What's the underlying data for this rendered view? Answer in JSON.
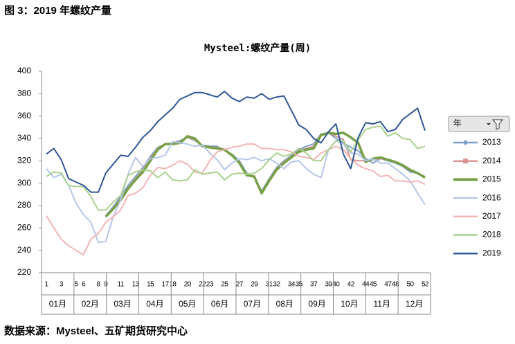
{
  "header": "图 3：2019 年螺纹产量",
  "source": "数据来源：Mysteel、五矿期货研究中心",
  "chart_data": {
    "type": "line",
    "title": "Mysteel:螺纹产量(周)",
    "categories": [
      "1",
      null,
      "3",
      null,
      "5",
      "6",
      null,
      "8",
      "9",
      null,
      "11",
      null,
      "13",
      null,
      "15",
      null,
      "17",
      "18",
      null,
      "20",
      null,
      "22",
      "23",
      null,
      "25",
      null,
      "27",
      null,
      "29",
      null,
      "31",
      "32",
      null,
      "34",
      "35",
      null,
      "37",
      null,
      "39",
      "40",
      null,
      "42",
      null,
      "44",
      "45",
      null,
      "47",
      "48",
      null,
      "50",
      null,
      "52"
    ],
    "months": [
      "01月",
      "02月",
      "03月",
      "04月",
      "05月",
      "06月",
      "07月",
      "08月",
      "09月",
      "10月",
      "11月",
      "12月"
    ],
    "legend_title": "年",
    "legend": "right",
    "ylim": [
      220,
      400
    ],
    "yticks": [
      220,
      240,
      260,
      280,
      300,
      320,
      340,
      360,
      380,
      400
    ],
    "series": [
      {
        "name": "2013",
        "color": "#7f9fc9",
        "marker": "diamond",
        "values": [
          null,
          null,
          null,
          null,
          null,
          null,
          null,
          null,
          271,
          279,
          288,
          298,
          306,
          314,
          324,
          332,
          335,
          336,
          338,
          341,
          338,
          334,
          333,
          333,
          329,
          326,
          320,
          309,
          305,
          293,
          304,
          314,
          320,
          325,
          330,
          333,
          335,
          344,
          345,
          340,
          336,
          332,
          329,
          322,
          318,
          322,
          320,
          318,
          315,
          310,
          309,
          305
        ]
      },
      {
        "name": "2014",
        "color": "#d99594",
        "marker": "square",
        "values": [
          null,
          null,
          null,
          null,
          null,
          null,
          null,
          null,
          270,
          278,
          286,
          296,
          304,
          312,
          322,
          331,
          335,
          335,
          337,
          341,
          339,
          333,
          332,
          332,
          330,
          325,
          319,
          308,
          306,
          292,
          303,
          313,
          319,
          324,
          329,
          331,
          333,
          343,
          345,
          342,
          339,
          321,
          320,
          320,
          321,
          322,
          321,
          319,
          316,
          312,
          309,
          306
        ]
      },
      {
        "name": "2015",
        "color": "#77a046",
        "marker": "thick",
        "values": [
          null,
          null,
          null,
          null,
          null,
          null,
          null,
          null,
          270,
          277,
          285,
          295,
          303,
          310,
          320,
          330,
          335,
          335,
          336,
          342,
          340,
          333,
          332,
          331,
          330,
          325,
          318,
          307,
          306,
          291,
          302,
          312,
          318,
          323,
          328,
          330,
          331,
          343,
          345,
          344,
          345,
          341,
          336,
          319,
          322,
          323,
          321,
          319,
          316,
          312,
          309,
          305
        ]
      },
      {
        "name": "2016",
        "color": "#b4c7e7",
        "marker": "none",
        "values": [
          313,
          305,
          308,
          298,
          282,
          272,
          265,
          247,
          248,
          270,
          285,
          308,
          323,
          315,
          322,
          323,
          325,
          337,
          336,
          335,
          333,
          334,
          327,
          321,
          312,
          318,
          322,
          321,
          323,
          320,
          322,
          318,
          313,
          319,
          320,
          313,
          308,
          305,
          330,
          338,
          335,
          327,
          326,
          320,
          322,
          318,
          318,
          313,
          308,
          302,
          291,
          281
        ]
      },
      {
        "name": "2017",
        "color": "#f4b4b4",
        "marker": "none",
        "values": [
          271,
          260,
          250,
          244,
          240,
          236,
          250,
          255,
          265,
          270,
          276,
          289,
          291,
          296,
          307,
          314,
          313,
          316,
          320,
          317,
          310,
          309,
          320,
          328,
          330,
          332,
          333,
          335,
          335,
          331,
          331,
          330,
          330,
          328,
          324,
          323,
          321,
          327,
          330,
          333,
          330,
          322,
          316,
          313,
          311,
          306,
          307,
          302,
          302,
          301,
          302,
          299
        ]
      },
      {
        "name": "2018",
        "color": "#a9d18e",
        "marker": "none",
        "values": [
          306,
          310,
          309,
          298,
          297,
          297,
          288,
          276,
          276,
          283,
          289,
          307,
          310,
          312,
          311,
          305,
          310,
          303,
          302,
          303,
          312,
          308,
          309,
          310,
          303,
          308,
          309,
          308,
          309,
          313,
          321,
          327,
          324,
          326,
          331,
          327,
          320,
          320,
          330,
          338,
          338,
          328,
          339,
          348,
          350,
          351,
          342,
          345,
          340,
          339,
          331,
          333
        ]
      },
      {
        "name": "2019",
        "color": "#2f5597",
        "marker": "none",
        "values": [
          326,
          331,
          321,
          304,
          301,
          298,
          292,
          292,
          309,
          317,
          325,
          324,
          332,
          341,
          347,
          355,
          361,
          367,
          375,
          378,
          381,
          381,
          379,
          377,
          382,
          376,
          373,
          377,
          376,
          380,
          375,
          377,
          378,
          365,
          352,
          348,
          340,
          336,
          346,
          353,
          326,
          313,
          341,
          354,
          353,
          355,
          346,
          348,
          357,
          362,
          367,
          347
        ]
      }
    ]
  }
}
